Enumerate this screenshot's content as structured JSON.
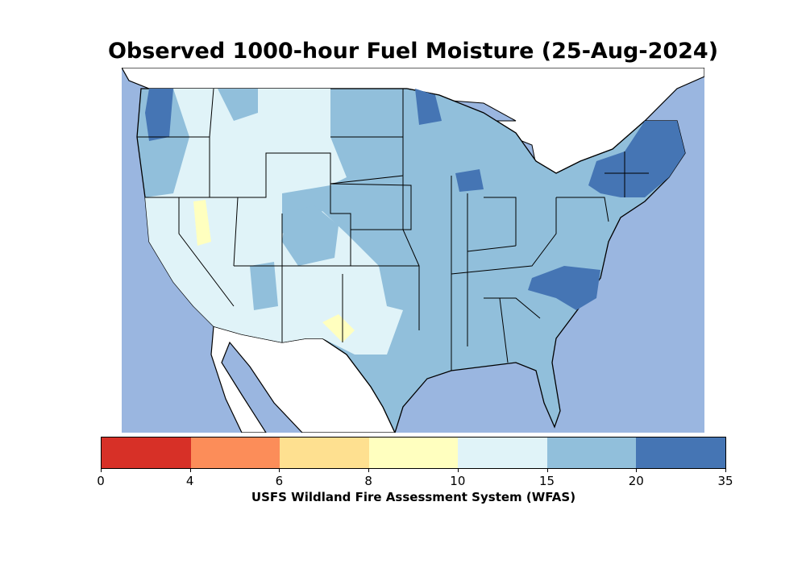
{
  "title": "Observed 1000-hour Fuel Moisture (25-Aug-2024)",
  "colors": {
    "ocean": "#9ab6e0",
    "land_outside": "#ffffff",
    "bins": [
      "#d73027",
      "#fc8d59",
      "#fee090",
      "#ffffbf",
      "#e0f3f8",
      "#91bfdb",
      "#4575b4"
    ]
  },
  "colorbar": {
    "ticks": [
      "0",
      "4",
      "6",
      "8",
      "10",
      "15",
      "20",
      "35"
    ],
    "label": "USFS Wildland Fire Assessment System (WFAS)"
  }
}
